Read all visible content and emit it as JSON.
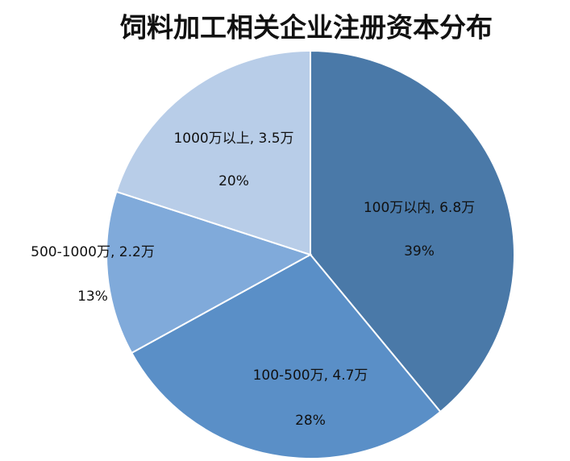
{
  "chart_data": {
    "type": "pie",
    "title": "饲料加工相关企业注册资本分布",
    "categories": [
      "100万以内, 6.8万",
      "100-500万, 4.7万",
      "500-1000万, 2.2万",
      "1000万以上, 3.5万"
    ],
    "values": [
      39,
      28,
      13,
      20
    ],
    "value_labels": [
      "39%",
      "28%",
      "13%",
      "20%"
    ],
    "colors": [
      "#4a79a8",
      "#5a8fc7",
      "#80aada",
      "#b8cde8"
    ]
  }
}
